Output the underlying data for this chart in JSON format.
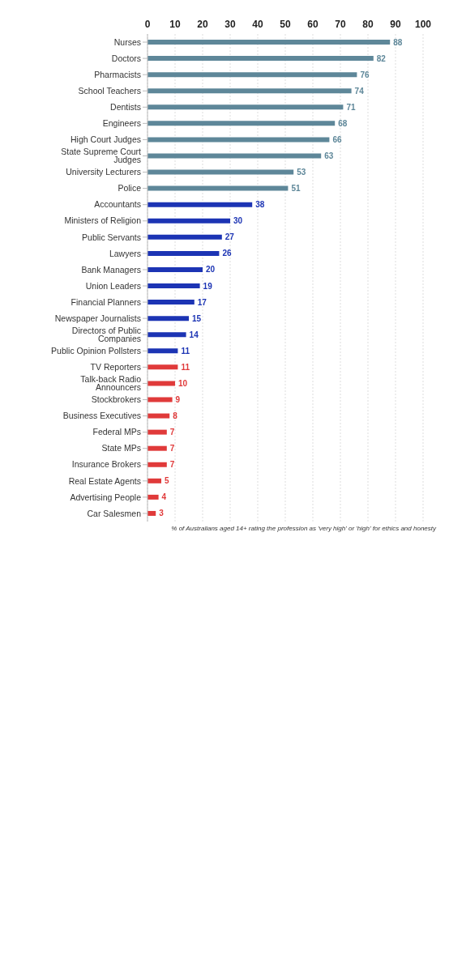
{
  "chart_data": {
    "type": "bar",
    "orientation": "horizontal",
    "categories": [
      "Nurses",
      "Doctors",
      "Pharmacists",
      "School Teachers",
      "Dentists",
      "Engineers",
      "High Court Judges",
      "State Supreme Court Judges",
      "University Lecturers",
      "Police",
      "Accountants",
      "Ministers of Religion",
      "Public Servants",
      "Lawyers",
      "Bank Managers",
      "Union Leaders",
      "Financial Planners",
      "Newspaper Journalists",
      "Directors of Public Companies",
      "Public Opinion Pollsters",
      "TV Reporters",
      "Talk-back Radio Announcers",
      "Stockbrokers",
      "Business Executives",
      "Federal MPs",
      "State MPs",
      "Insurance Brokers",
      "Real Estate Agents",
      "Advertising People",
      "Car Salesmen"
    ],
    "values": [
      88,
      82,
      76,
      74,
      71,
      68,
      66,
      63,
      53,
      51,
      38,
      30,
      27,
      26,
      20,
      19,
      17,
      15,
      14,
      11,
      11,
      10,
      9,
      8,
      7,
      7,
      7,
      5,
      4,
      3
    ],
    "colors": [
      "#5e8799",
      "#5e8799",
      "#5e8799",
      "#5e8799",
      "#5e8799",
      "#5e8799",
      "#5e8799",
      "#5e8799",
      "#5e8799",
      "#5e8799",
      "#1c34b4",
      "#1c34b4",
      "#1c34b4",
      "#1c34b4",
      "#1c34b4",
      "#1c34b4",
      "#1c34b4",
      "#1c34b4",
      "#1c34b4",
      "#1c34b4",
      "#e03a3a",
      "#e03a3a",
      "#e03a3a",
      "#e03a3a",
      "#e03a3a",
      "#e03a3a",
      "#e03a3a",
      "#e03a3a",
      "#e03a3a",
      "#e03a3a"
    ],
    "xlim": [
      0,
      100
    ],
    "xticks": [
      0,
      10,
      20,
      30,
      40,
      50,
      60,
      70,
      80,
      90,
      100
    ],
    "grid": "x",
    "data_labels": true,
    "annotations": [
      "% of Australians aged 14+ rating the profession as 'very high' or 'high' for ethics and honesty"
    ]
  }
}
